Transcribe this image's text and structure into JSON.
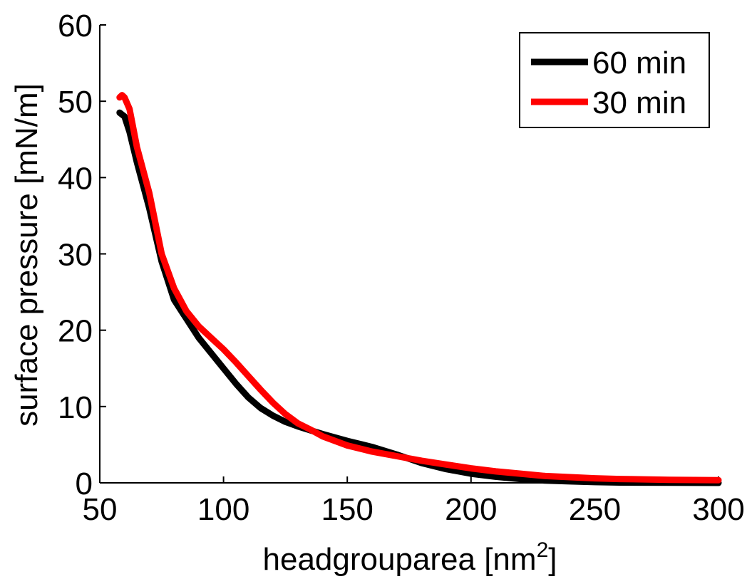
{
  "chart_data": {
    "type": "line",
    "xlabel": "headgrouparea [nm",
    "xlabel_sup": "2",
    "xlabel_end": "]",
    "ylabel": "surface pressure [mN/m]",
    "xlim": [
      50,
      300
    ],
    "ylim": [
      0,
      60
    ],
    "xticks": [
      50,
      100,
      150,
      200,
      250,
      300
    ],
    "yticks": [
      0,
      10,
      20,
      30,
      40,
      50,
      60
    ],
    "xtick_labels": [
      "50",
      "100",
      "150",
      "200",
      "250",
      "300"
    ],
    "ytick_labels": [
      "0",
      "10",
      "20",
      "30",
      "40",
      "50",
      "60"
    ],
    "grid": false,
    "legend_position": "top-right",
    "series": [
      {
        "name": "60 min",
        "color": "#000000",
        "x": [
          58,
          60,
          62,
          65,
          70,
          75,
          80,
          85,
          90,
          95,
          100,
          105,
          110,
          115,
          120,
          125,
          130,
          135,
          140,
          150,
          160,
          170,
          180,
          190,
          200,
          210,
          220,
          230,
          240,
          250,
          260,
          280,
          300
        ],
        "y": [
          48.5,
          48,
          46,
          42,
          36,
          29,
          24,
          21.5,
          19,
          17,
          15,
          13,
          11.2,
          9.8,
          8.8,
          8,
          7.4,
          6.9,
          6.4,
          5.5,
          4.7,
          3.7,
          2.6,
          1.8,
          1.2,
          0.8,
          0.5,
          0.3,
          0.2,
          0.1,
          0.05,
          0.02,
          0
        ]
      },
      {
        "name": "30 min",
        "color": "#ff0000",
        "x": [
          58,
          59,
          60,
          62,
          65,
          70,
          75,
          80,
          85,
          90,
          95,
          100,
          105,
          110,
          115,
          120,
          125,
          130,
          135,
          140,
          150,
          160,
          170,
          180,
          190,
          200,
          210,
          220,
          230,
          240,
          250,
          260,
          280,
          300
        ],
        "y": [
          50.5,
          50.8,
          50.5,
          49,
          44,
          38,
          30,
          25.5,
          22.5,
          20.5,
          19,
          17.5,
          15.8,
          14,
          12.2,
          10.5,
          9,
          7.8,
          7,
          6.1,
          4.9,
          4.1,
          3.5,
          2.9,
          2.4,
          1.9,
          1.5,
          1.2,
          0.9,
          0.75,
          0.6,
          0.5,
          0.4,
          0.35
        ]
      }
    ]
  }
}
